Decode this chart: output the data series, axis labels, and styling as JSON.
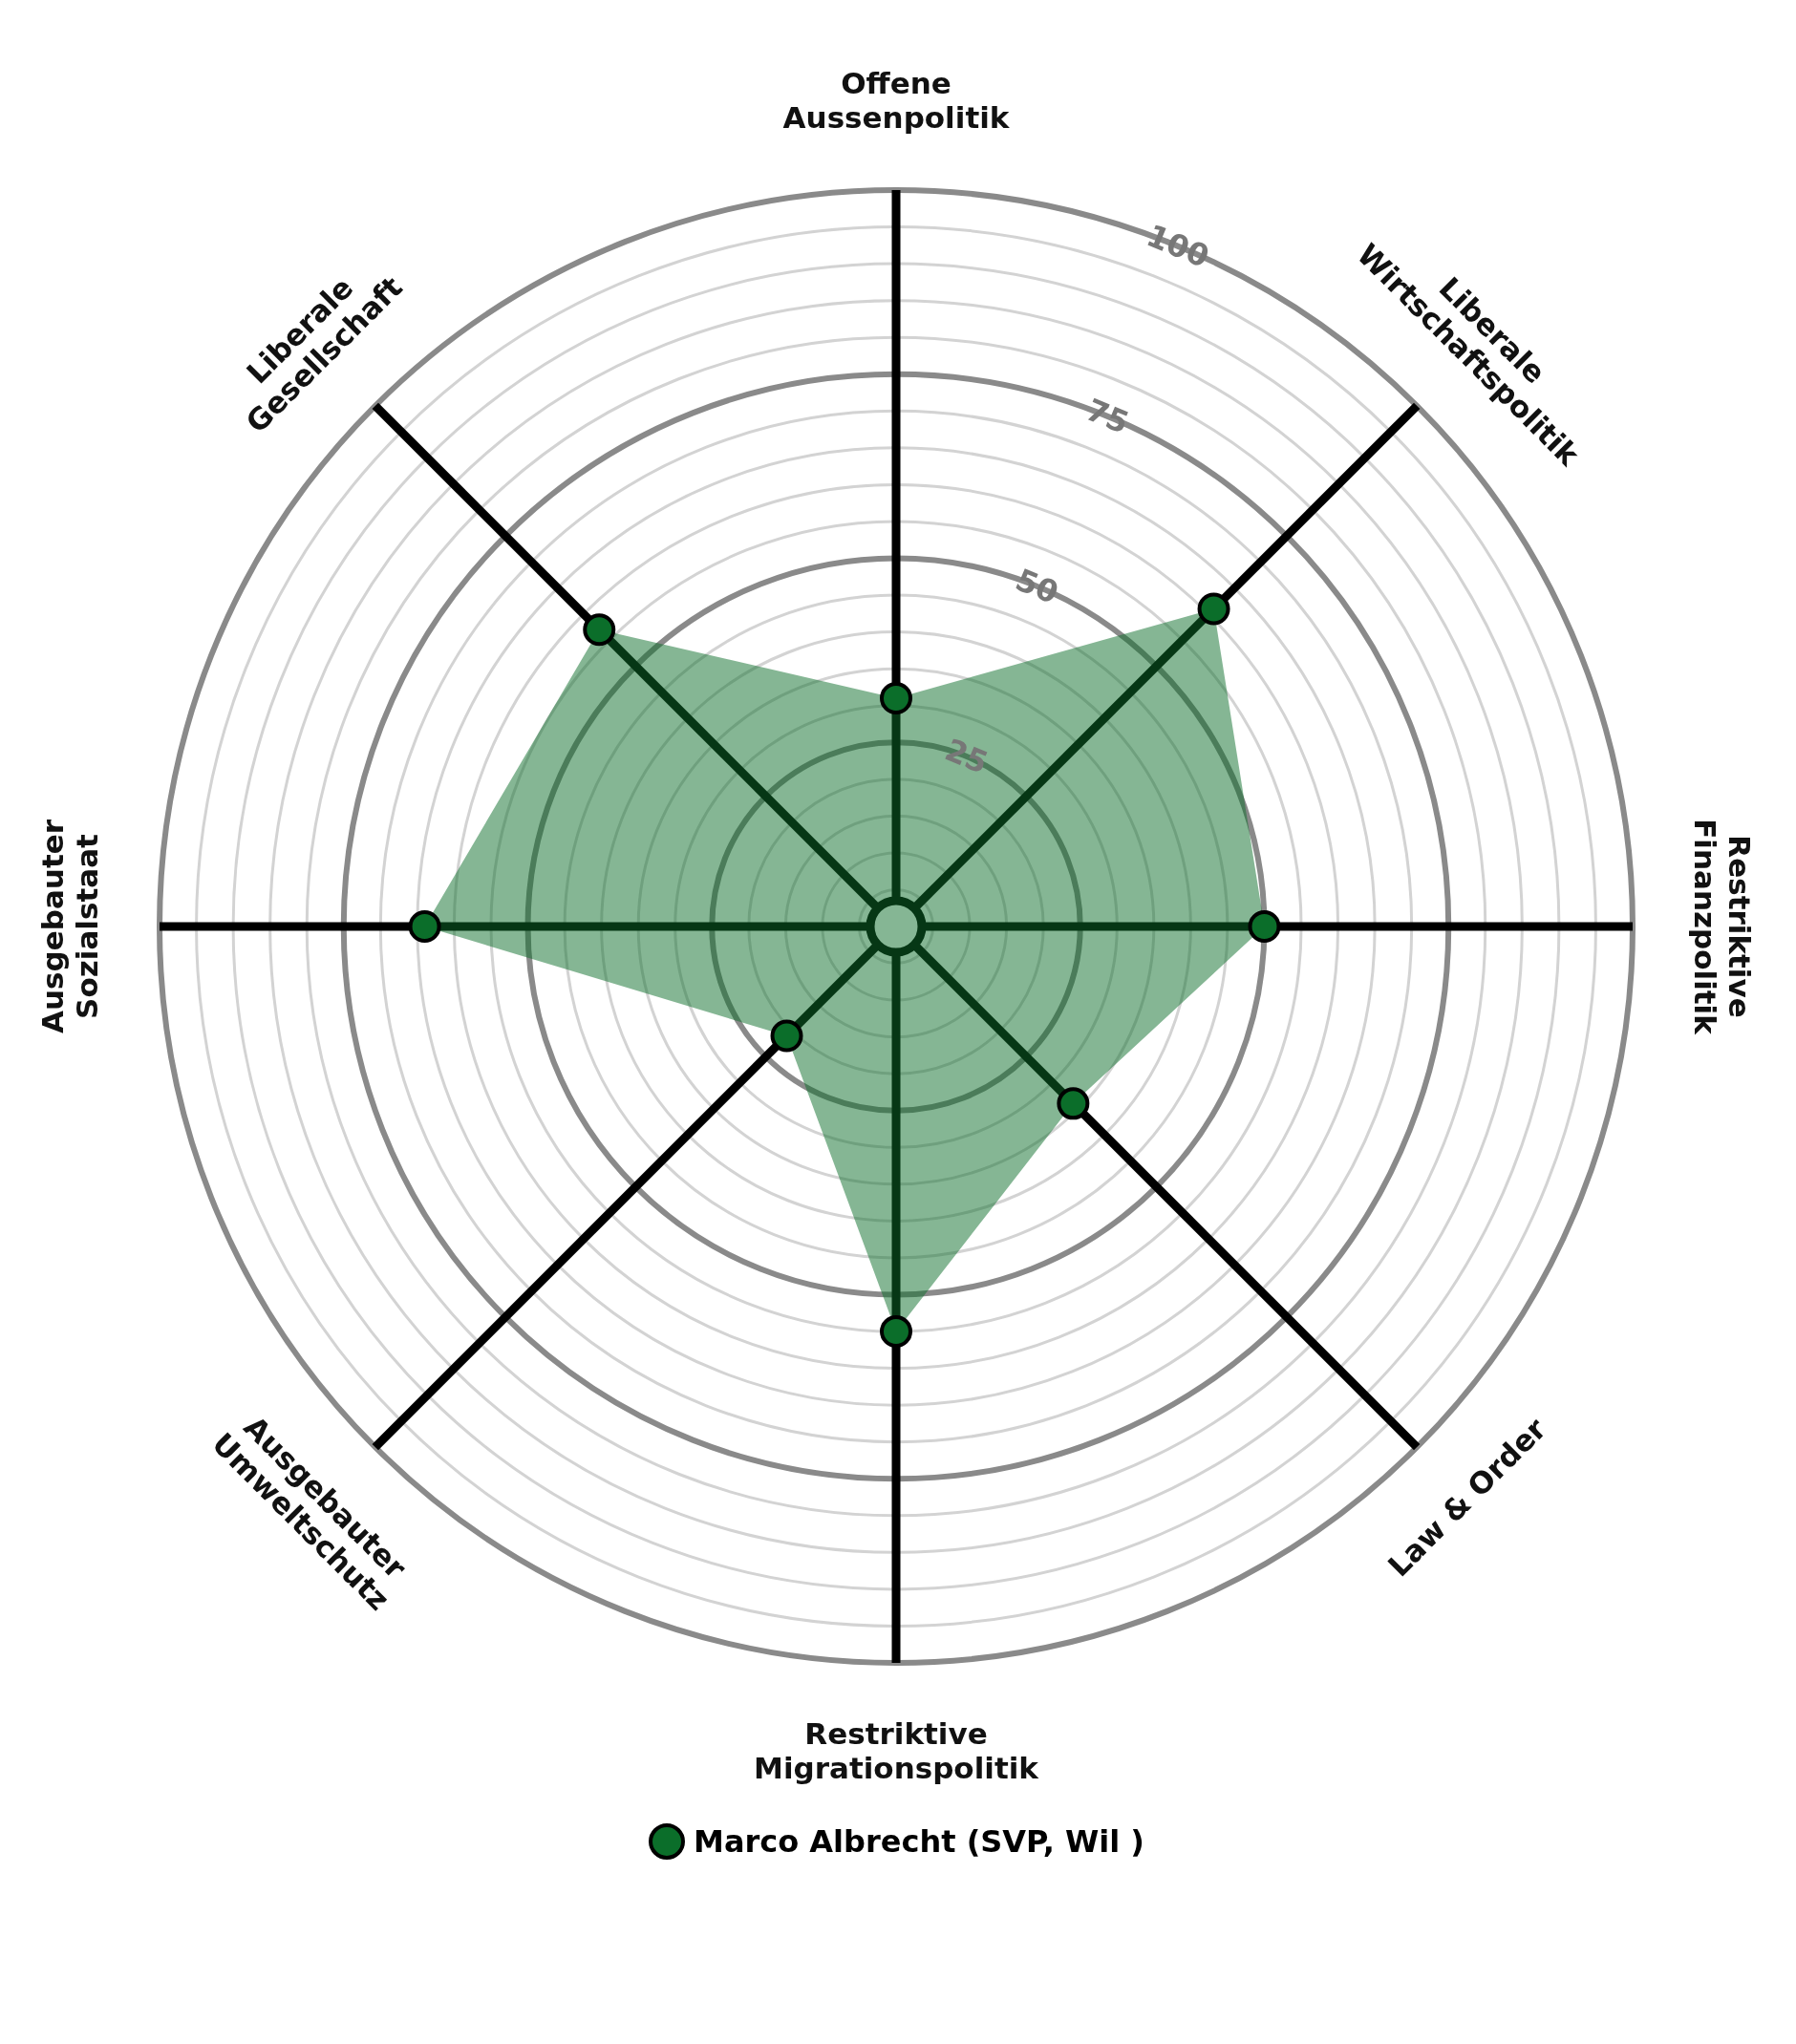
{
  "chart_data": {
    "type": "radar",
    "categories": [
      "Offene\nAussenpolitik",
      "Liberale\nWirtschaftspolitik",
      "Restriktive\nFinanzpolitik",
      "Law & Order",
      "Restriktive\nMigrationspolitik",
      "Ausgebauter\nUmweltschutz",
      "Ausgebauter\nSozialstaat",
      "Liberale\nGesellschaft"
    ],
    "series": [
      {
        "name": "Marco Albrecht (SVP, Wil )",
        "color": "#0b6e2a",
        "values": [
          31,
          61,
          50,
          34,
          55,
          21,
          64,
          57
        ]
      }
    ],
    "ylim": [
      0,
      100
    ],
    "yticks": [
      25,
      50,
      75,
      100
    ],
    "grid": true,
    "marker": "circle",
    "legend": "bottom"
  }
}
